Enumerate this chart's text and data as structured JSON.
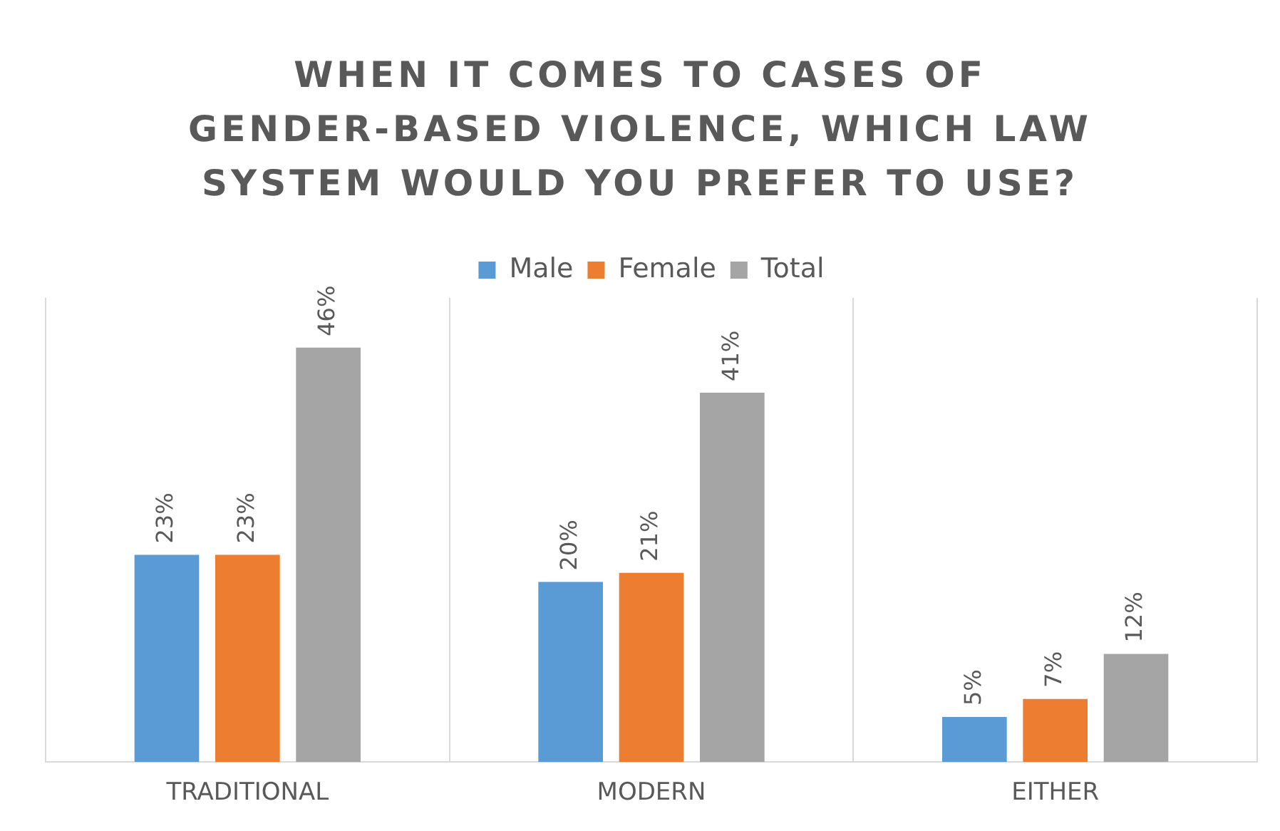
{
  "chart_data": {
    "type": "bar",
    "title": "WHEN IT COMES TO CASES OF GENDER-BASED VIOLENCE, WHICH LAW SYSTEM WOULD YOU PREFER TO USE?",
    "categories": [
      "TRADITIONAL",
      "MODERN",
      "EITHER"
    ],
    "series": [
      {
        "name": "Male",
        "color": "#5b9bd5",
        "values": [
          23,
          20,
          5
        ],
        "value_labels": [
          "23%",
          "20%",
          "5%"
        ]
      },
      {
        "name": "Female",
        "color": "#ed7d31",
        "values": [
          23,
          21,
          7
        ],
        "value_labels": [
          "23%",
          "21%",
          "7%"
        ]
      },
      {
        "name": "Total",
        "color": "#a5a5a5",
        "values": [
          46,
          41,
          12
        ],
        "value_labels": [
          "46%",
          "41%",
          "12%"
        ]
      }
    ],
    "grid": "x",
    "legend": "top"
  }
}
